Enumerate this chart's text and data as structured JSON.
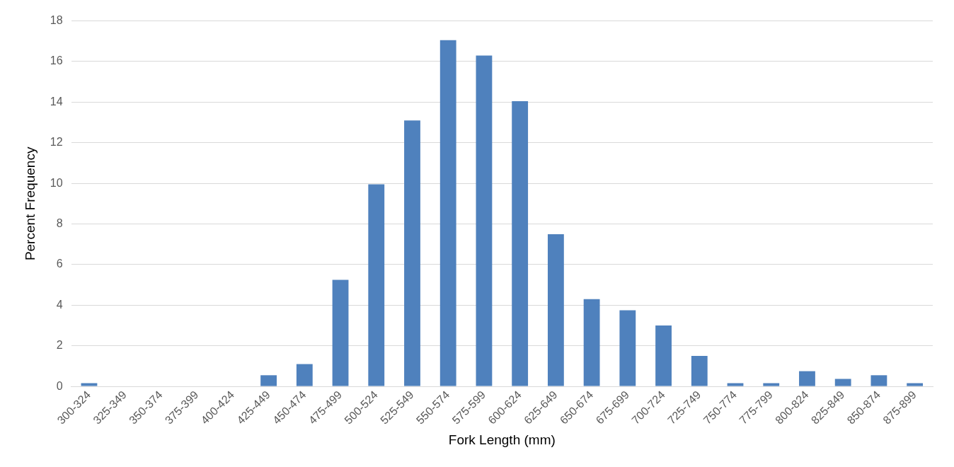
{
  "chart_data": {
    "type": "bar",
    "xlabel": "Fork Length (mm)",
    "ylabel": "Percent Frequency",
    "categories": [
      "300-324",
      "325-349",
      "350-374",
      "375-399",
      "400-424",
      "425-449",
      "450-474",
      "475-499",
      "500-524",
      "525-549",
      "550-574",
      "575-599",
      "600-624",
      "625-649",
      "650-674",
      "675-699",
      "700-724",
      "725-749",
      "750-774",
      "775-799",
      "800-824",
      "825-849",
      "850-874",
      "875-899"
    ],
    "values": [
      0.16,
      0,
      0,
      0,
      0,
      0.55,
      1.1,
      5.25,
      9.95,
      13.1,
      17.05,
      16.3,
      14.05,
      7.5,
      4.3,
      3.75,
      3,
      1.5,
      0.16,
      0.16,
      0.75,
      0.37,
      0.55,
      0.16
    ],
    "color": "#4f81bd",
    "ylim": [
      0,
      18
    ],
    "yticks": [
      0,
      2,
      4,
      6,
      8,
      10,
      12,
      14,
      16,
      18
    ],
    "grid": "y",
    "legend": false
  }
}
